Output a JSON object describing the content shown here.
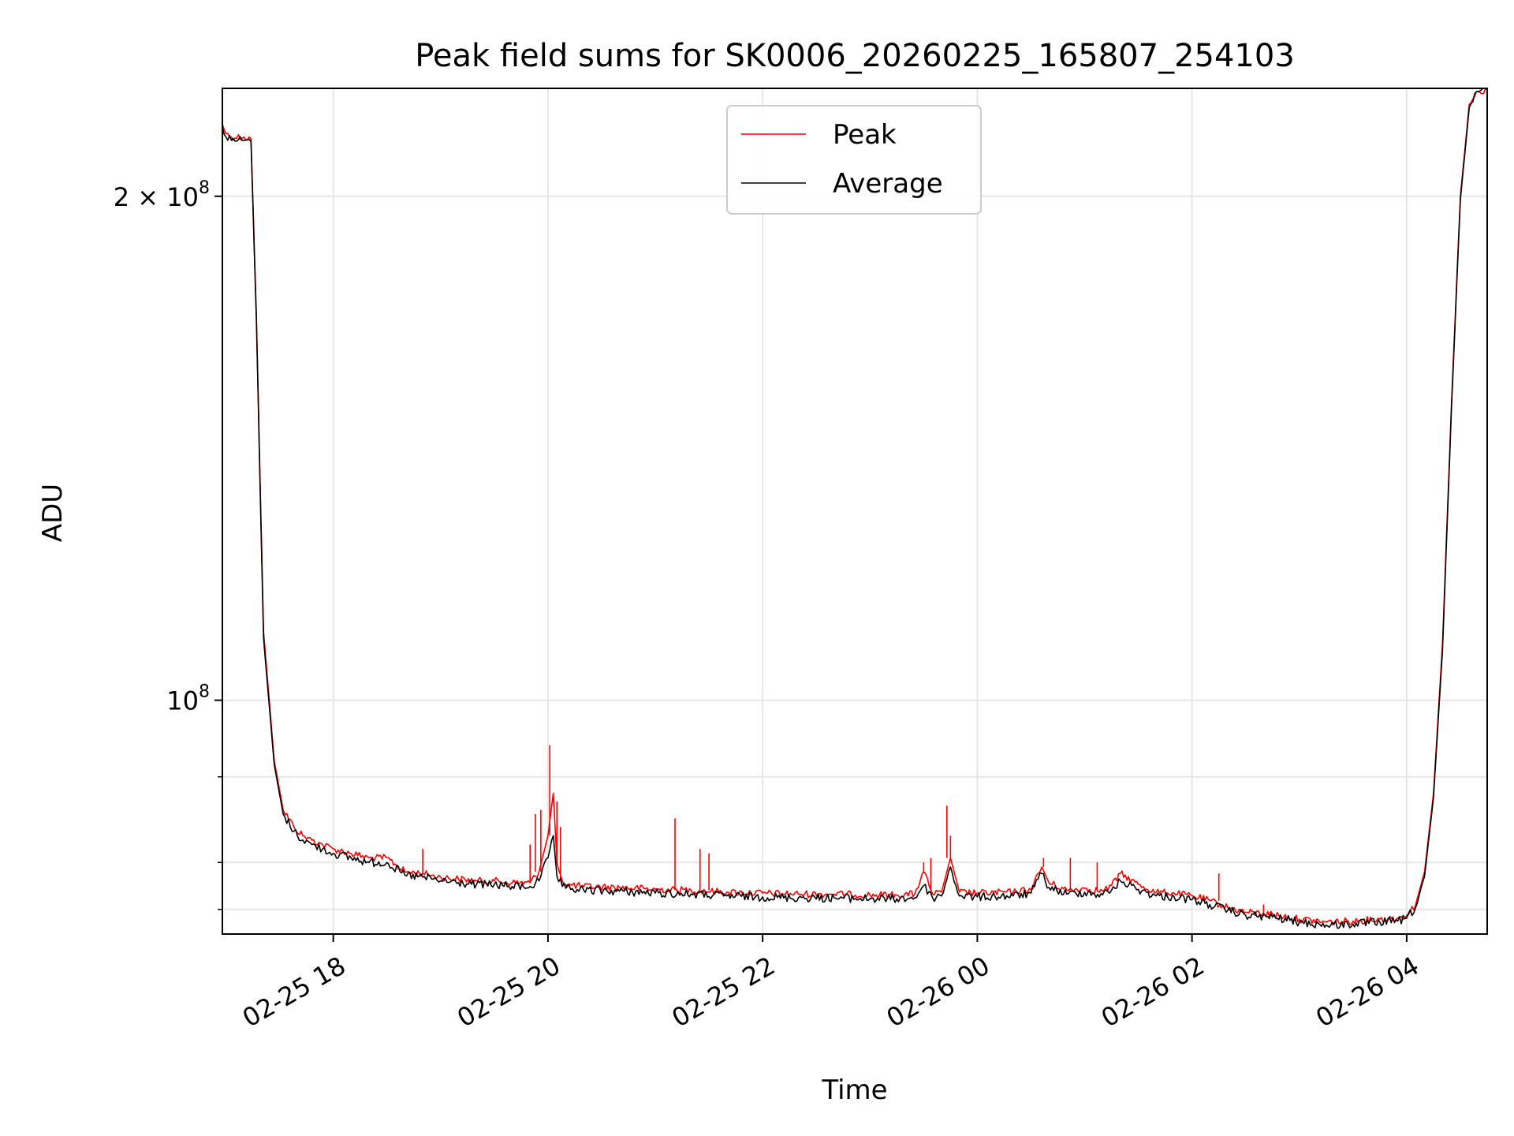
{
  "chart_data": {
    "type": "line",
    "title": "Peak field sums for SK0006_20260225_165807_254103",
    "xlabel": "Time",
    "ylabel": "ADU",
    "y_scale": "log",
    "x_start": "2026-02-25 16:58",
    "x_end": "2026-02-26 04:45",
    "xlim": [
      "2026-02-25 16:58",
      "2026-02-26 04:45"
    ],
    "ylim": [
      72500000,
      232000000
    ],
    "grid": true,
    "legend_position": "upper center",
    "x_ticks": [
      {
        "t": "2026-02-25 18:00",
        "label": "02-25 18"
      },
      {
        "t": "2026-02-25 20:00",
        "label": "02-25 20"
      },
      {
        "t": "2026-02-25 22:00",
        "label": "02-25 22"
      },
      {
        "t": "2026-02-26 00:00",
        "label": "02-26 00"
      },
      {
        "t": "2026-02-26 02:00",
        "label": "02-26 02"
      },
      {
        "t": "2026-02-26 04:00",
        "label": "02-26 04"
      }
    ],
    "y_ticks_major": [
      {
        "value": 100000000,
        "base": "10",
        "exp": "8",
        "mult": ""
      },
      {
        "value": 200000000,
        "base": "10",
        "exp": "8",
        "mult": "2 × "
      }
    ],
    "y_ticks_minor": [
      75000000,
      80000000,
      90000000
    ],
    "series": [
      {
        "name": "Peak",
        "color": "#ff0000",
        "x": [
          "2026-02-25 16:58",
          "2026-02-25 17:00",
          "2026-02-25 17:03",
          "2026-02-25 17:10",
          "2026-02-25 17:14",
          "2026-02-25 17:17",
          "2026-02-25 17:21",
          "2026-02-25 17:27",
          "2026-02-25 17:32",
          "2026-02-25 17:38",
          "2026-02-25 17:43",
          "2026-02-25 17:48",
          "2026-02-25 17:54",
          "2026-02-25 18:00",
          "2026-02-25 18:10",
          "2026-02-25 18:20",
          "2026-02-25 18:30",
          "2026-02-25 18:40",
          "2026-02-25 18:50",
          "2026-02-25 18:55",
          "2026-02-25 19:00",
          "2026-02-25 19:10",
          "2026-02-25 19:20",
          "2026-02-25 19:30",
          "2026-02-25 19:40",
          "2026-02-25 19:50",
          "2026-02-25 19:55",
          "2026-02-25 20:00",
          "2026-02-25 20:03",
          "2026-02-25 20:05",
          "2026-02-25 20:08",
          "2026-02-25 20:10",
          "2026-02-25 20:20",
          "2026-02-25 20:40",
          "2026-02-25 21:00",
          "2026-02-25 21:20",
          "2026-02-25 21:40",
          "2026-02-25 22:00",
          "2026-02-25 22:20",
          "2026-02-25 22:40",
          "2026-02-25 23:00",
          "2026-02-25 23:15",
          "2026-02-25 23:25",
          "2026-02-25 23:30",
          "2026-02-25 23:35",
          "2026-02-25 23:40",
          "2026-02-25 23:45",
          "2026-02-25 23:50",
          "2026-02-26 00:00",
          "2026-02-26 00:20",
          "2026-02-26 00:30",
          "2026-02-26 00:36",
          "2026-02-26 00:40",
          "2026-02-26 00:50",
          "2026-02-26 01:00",
          "2026-02-26 01:10",
          "2026-02-26 01:15",
          "2026-02-26 01:20",
          "2026-02-26 01:30",
          "2026-02-26 01:40",
          "2026-02-26 01:50",
          "2026-02-26 02:00",
          "2026-02-26 02:10",
          "2026-02-26 02:20",
          "2026-02-26 02:30",
          "2026-02-26 02:45",
          "2026-02-26 03:00",
          "2026-02-26 03:15",
          "2026-02-26 03:30",
          "2026-02-26 03:45",
          "2026-02-26 03:55",
          "2026-02-26 04:00",
          "2026-02-26 04:05",
          "2026-02-26 04:10",
          "2026-02-26 04:15",
          "2026-02-26 04:20",
          "2026-02-26 04:25",
          "2026-02-26 04:30",
          "2026-02-26 04:35",
          "2026-02-26 04:40",
          "2026-02-26 04:45"
        ],
        "y": [
          221000000,
          218000000,
          217000000,
          217000000,
          216500000,
          170000000,
          110000000,
          92000000,
          86000000,
          84000000,
          83000000,
          82500000,
          82000000,
          81500000,
          81000000,
          80500000,
          80500000,
          79000000,
          78800000,
          78600000,
          78400000,
          78200000,
          78000000,
          78000000,
          77800000,
          77800000,
          79000000,
          83000000,
          88000000,
          80000000,
          78000000,
          77600000,
          77400000,
          77300000,
          77100000,
          77000000,
          76800000,
          76700000,
          76600000,
          76600000,
          76500000,
          76500000,
          76600000,
          79000000,
          76600000,
          76800000,
          80500000,
          76800000,
          76700000,
          76800000,
          77100000,
          79500000,
          77800000,
          77000000,
          77200000,
          76900000,
          77500000,
          78800000,
          77600000,
          76800000,
          76700000,
          76400000,
          75900000,
          75200000,
          74700000,
          74500000,
          74000000,
          73700000,
          73800000,
          74000000,
          74100000,
          74400000,
          75500000,
          79000000,
          88000000,
          108000000,
          150000000,
          200000000,
          227000000,
          231000000,
          231500000
        ],
        "spikes": [
          {
            "t": "2026-02-25 18:50",
            "y": 81500000
          },
          {
            "t": "2026-02-25 19:50",
            "y": 82000000
          },
          {
            "t": "2026-02-25 19:53",
            "y": 85500000
          },
          {
            "t": "2026-02-25 19:56",
            "y": 86000000
          },
          {
            "t": "2026-02-25 20:01",
            "y": 94000000
          },
          {
            "t": "2026-02-25 20:05",
            "y": 87000000
          },
          {
            "t": "2026-02-25 20:07",
            "y": 84000000
          },
          {
            "t": "2026-02-25 21:11",
            "y": 85000000
          },
          {
            "t": "2026-02-25 21:25",
            "y": 81500000
          },
          {
            "t": "2026-02-25 21:30",
            "y": 81000000
          },
          {
            "t": "2026-02-25 23:30",
            "y": 80000000
          },
          {
            "t": "2026-02-25 23:34",
            "y": 80500000
          },
          {
            "t": "2026-02-25 23:43",
            "y": 86500000
          },
          {
            "t": "2026-02-25 23:45",
            "y": 83000000
          },
          {
            "t": "2026-02-26 00:37",
            "y": 80500000
          },
          {
            "t": "2026-02-26 00:52",
            "y": 80500000
          },
          {
            "t": "2026-02-26 01:07",
            "y": 80000000
          },
          {
            "t": "2026-02-26 02:15",
            "y": 78800000
          },
          {
            "t": "2026-02-26 02:40",
            "y": 75500000
          }
        ]
      },
      {
        "name": "Average",
        "color": "#000000",
        "x": [
          "2026-02-25 16:58",
          "2026-02-25 17:00",
          "2026-02-25 17:03",
          "2026-02-25 17:10",
          "2026-02-25 17:14",
          "2026-02-25 17:17",
          "2026-02-25 17:21",
          "2026-02-25 17:27",
          "2026-02-25 17:32",
          "2026-02-25 17:38",
          "2026-02-25 17:43",
          "2026-02-25 17:48",
          "2026-02-25 17:54",
          "2026-02-25 18:00",
          "2026-02-25 18:10",
          "2026-02-25 18:20",
          "2026-02-25 18:30",
          "2026-02-25 18:40",
          "2026-02-25 18:50",
          "2026-02-25 18:55",
          "2026-02-25 19:00",
          "2026-02-25 19:10",
          "2026-02-25 19:20",
          "2026-02-25 19:30",
          "2026-02-25 19:40",
          "2026-02-25 19:50",
          "2026-02-25 19:55",
          "2026-02-25 20:00",
          "2026-02-25 20:03",
          "2026-02-25 20:05",
          "2026-02-25 20:08",
          "2026-02-25 20:10",
          "2026-02-25 20:20",
          "2026-02-25 20:40",
          "2026-02-25 21:00",
          "2026-02-25 21:20",
          "2026-02-25 21:40",
          "2026-02-25 22:00",
          "2026-02-25 22:20",
          "2026-02-25 22:40",
          "2026-02-25 23:00",
          "2026-02-25 23:15",
          "2026-02-25 23:25",
          "2026-02-25 23:30",
          "2026-02-25 23:35",
          "2026-02-25 23:40",
          "2026-02-25 23:45",
          "2026-02-25 23:50",
          "2026-02-26 00:00",
          "2026-02-26 00:20",
          "2026-02-26 00:30",
          "2026-02-26 00:36",
          "2026-02-26 00:40",
          "2026-02-26 00:50",
          "2026-02-26 01:00",
          "2026-02-26 01:10",
          "2026-02-26 01:15",
          "2026-02-26 01:20",
          "2026-02-26 01:30",
          "2026-02-26 01:40",
          "2026-02-26 01:50",
          "2026-02-26 02:00",
          "2026-02-26 02:10",
          "2026-02-26 02:20",
          "2026-02-26 02:30",
          "2026-02-26 02:45",
          "2026-02-26 03:00",
          "2026-02-26 03:15",
          "2026-02-26 03:30",
          "2026-02-26 03:45",
          "2026-02-26 03:55",
          "2026-02-26 04:00",
          "2026-02-26 04:05",
          "2026-02-26 04:10",
          "2026-02-26 04:15",
          "2026-02-26 04:20",
          "2026-02-26 04:25",
          "2026-02-26 04:30",
          "2026-02-26 04:35",
          "2026-02-26 04:40",
          "2026-02-26 04:45"
        ],
        "y": [
          220000000,
          217000000,
          216000000,
          216000000,
          215500000,
          169000000,
          109000000,
          91500000,
          85500000,
          83500000,
          82500000,
          82000000,
          81500000,
          81000000,
          80500000,
          80000000,
          80000000,
          78600000,
          78400000,
          78200000,
          78000000,
          77800000,
          77600000,
          77600000,
          77400000,
          77400000,
          78000000,
          80500000,
          83000000,
          78500000,
          77400000,
          77200000,
          77000000,
          76900000,
          76700000,
          76600000,
          76400000,
          76300000,
          76200000,
          76200000,
          76100000,
          76100000,
          76200000,
          77500000,
          76200000,
          76400000,
          79500000,
          76400000,
          76300000,
          76400000,
          76700000,
          78800000,
          77300000,
          76600000,
          76800000,
          76500000,
          77000000,
          78000000,
          77100000,
          76400000,
          76300000,
          76000000,
          75500000,
          74900000,
          74400000,
          74200000,
          73700000,
          73400000,
          73500000,
          73700000,
          73800000,
          74100000,
          75200000,
          78500000,
          87500000,
          107000000,
          149000000,
          199000000,
          226000000,
          231000000,
          231500000
        ]
      }
    ]
  }
}
